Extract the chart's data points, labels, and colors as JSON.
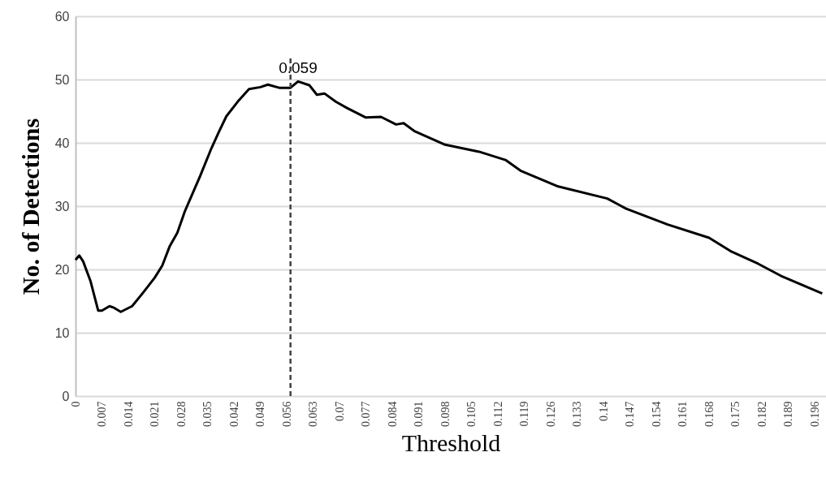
{
  "chart_data": {
    "type": "line",
    "xlabel": "Threshold",
    "ylabel": "No. of Detections",
    "x": [
      0,
      0.001,
      0.002,
      0.004,
      0.006,
      0.007,
      0.009,
      0.01,
      0.012,
      0.015,
      0.018,
      0.021,
      0.023,
      0.025,
      0.027,
      0.029,
      0.033,
      0.036,
      0.038,
      0.04,
      0.043,
      0.046,
      0.049,
      0.051,
      0.054,
      0.057,
      0.059,
      0.062,
      0.064,
      0.066,
      0.069,
      0.072,
      0.077,
      0.081,
      0.085,
      0.087,
      0.09,
      0.098,
      0.107,
      0.114,
      0.118,
      0.128,
      0.141,
      0.146,
      0.157,
      0.168,
      0.174,
      0.181,
      0.187,
      0.198
    ],
    "series": [
      {
        "color": "#000000",
        "values": [
          21.5,
          22.2,
          21.3,
          18.1,
          13.5,
          13.5,
          14.2,
          14.0,
          13.3,
          14.2,
          16.4,
          18.7,
          20.6,
          23.7,
          25.8,
          29.2,
          34.7,
          39.1,
          41.7,
          44.2,
          46.5,
          48.5,
          48.8,
          49.2,
          48.7,
          48.7,
          49.7,
          49.1,
          47.6,
          47.8,
          46.5,
          45.5,
          44.0,
          44.1,
          42.9,
          43.1,
          41.8,
          39.7,
          38.6,
          37.3,
          35.6,
          33.1,
          31.2,
          29.6,
          27.1,
          25.0,
          22.8,
          20.9,
          19.0,
          16.2
        ]
      }
    ],
    "xlim": [
      0,
      0.199
    ],
    "xticks": [
      0,
      0.007,
      0.014,
      0.021,
      0.028,
      0.035,
      0.042,
      0.049,
      0.056,
      0.063,
      0.07,
      0.077,
      0.084,
      0.091,
      0.098,
      0.105,
      0.112,
      0.119,
      0.126,
      0.133,
      0.14,
      0.147,
      0.154,
      0.161,
      0.168,
      0.175,
      0.182,
      0.189,
      0.196
    ],
    "ylim": [
      0,
      60
    ],
    "yticks": [
      0,
      10,
      20,
      30,
      40,
      50,
      60
    ],
    "grid": "y",
    "marker": "none",
    "line_style": "solid",
    "ref_lines": [
      {
        "axis": "x",
        "value": 0.057,
        "color": "#404040",
        "line_style": "dashed"
      }
    ],
    "annotations": [
      {
        "text": "0.059",
        "x": 0.059,
        "y": 49.7
      }
    ]
  }
}
